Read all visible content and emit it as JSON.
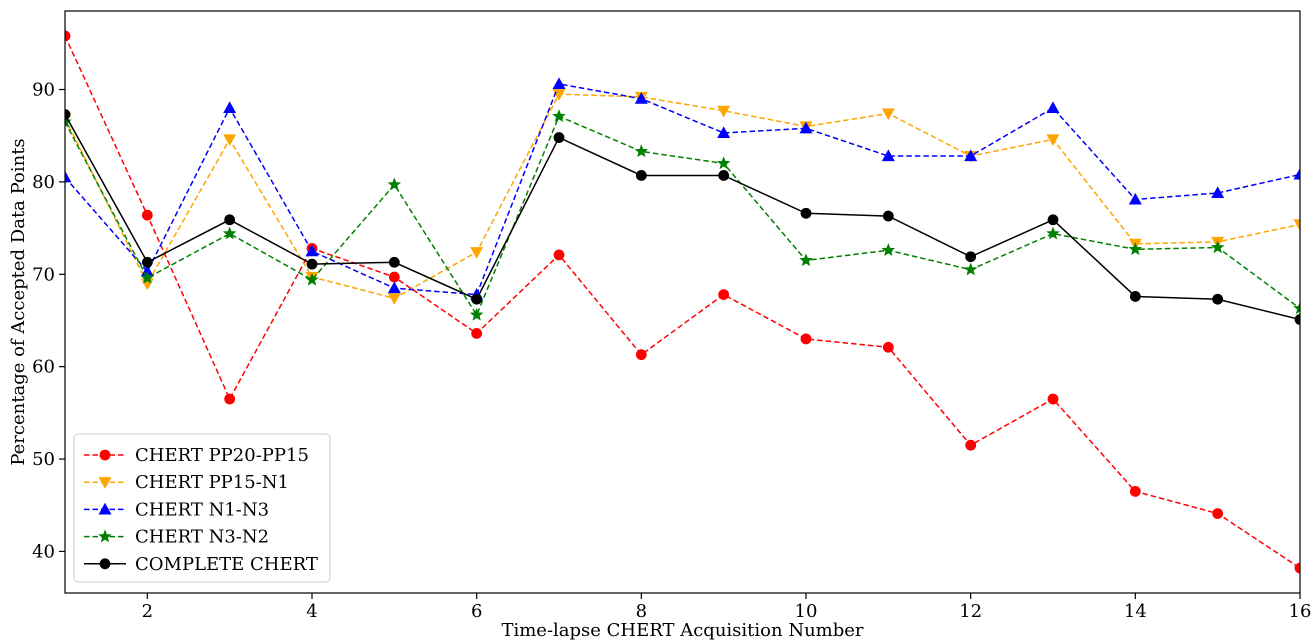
{
  "chart_data": {
    "type": "line",
    "title": "",
    "xlabel": "Time-lapse CHERT Acquisition Number",
    "ylabel": "Percentage of Accepted Data Points",
    "xlim": [
      1,
      16
    ],
    "ylim": [
      35.5,
      98.5
    ],
    "xticks": [
      2,
      4,
      6,
      8,
      10,
      12,
      14,
      16
    ],
    "yticks": [
      40,
      50,
      60,
      70,
      80,
      90
    ],
    "grid": false,
    "legend_position": "lower-left",
    "x": [
      1,
      2,
      3,
      4,
      5,
      6,
      7,
      8,
      9,
      10,
      11,
      12,
      13,
      14,
      15,
      16
    ],
    "series": [
      {
        "name": "CHERT PP20-PP15",
        "color": "#ff0000",
        "line_style": "dashed",
        "marker": "circle",
        "values": [
          95.8,
          76.4,
          56.5,
          72.8,
          69.7,
          63.6,
          72.1,
          61.3,
          67.8,
          63.0,
          62.1,
          51.5,
          56.5,
          46.5,
          44.1,
          38.2
        ]
      },
      {
        "name": "CHERT PP15-N1",
        "color": "#ffa500",
        "line_style": "dashed",
        "marker": "triangle-down",
        "values": [
          86.9,
          69.0,
          84.6,
          69.7,
          67.4,
          72.4,
          89.5,
          89.2,
          87.7,
          86.0,
          87.4,
          82.8,
          84.6,
          73.3,
          73.5,
          75.4
        ]
      },
      {
        "name": "CHERT N1-N3",
        "color": "#0000ff",
        "line_style": "dashed",
        "marker": "triangle-up",
        "values": [
          80.5,
          70.3,
          88.0,
          72.5,
          68.5,
          67.8,
          90.6,
          89.0,
          85.3,
          85.8,
          82.8,
          82.8,
          88.0,
          78.1,
          78.8,
          80.8
        ]
      },
      {
        "name": "CHERT N3-N2",
        "color": "#008000",
        "line_style": "dashed",
        "marker": "star",
        "values": [
          86.5,
          69.6,
          74.4,
          69.4,
          79.7,
          65.6,
          87.1,
          83.3,
          82.0,
          71.5,
          72.6,
          70.5,
          74.4,
          72.7,
          72.9,
          66.3
        ]
      },
      {
        "name": "COMPLETE CHERT",
        "color": "#000000",
        "line_style": "solid",
        "marker": "circle",
        "values": [
          87.3,
          71.3,
          75.9,
          71.1,
          71.3,
          67.3,
          84.8,
          80.7,
          80.7,
          76.6,
          76.3,
          71.9,
          75.9,
          67.6,
          67.3,
          65.1
        ]
      }
    ]
  }
}
